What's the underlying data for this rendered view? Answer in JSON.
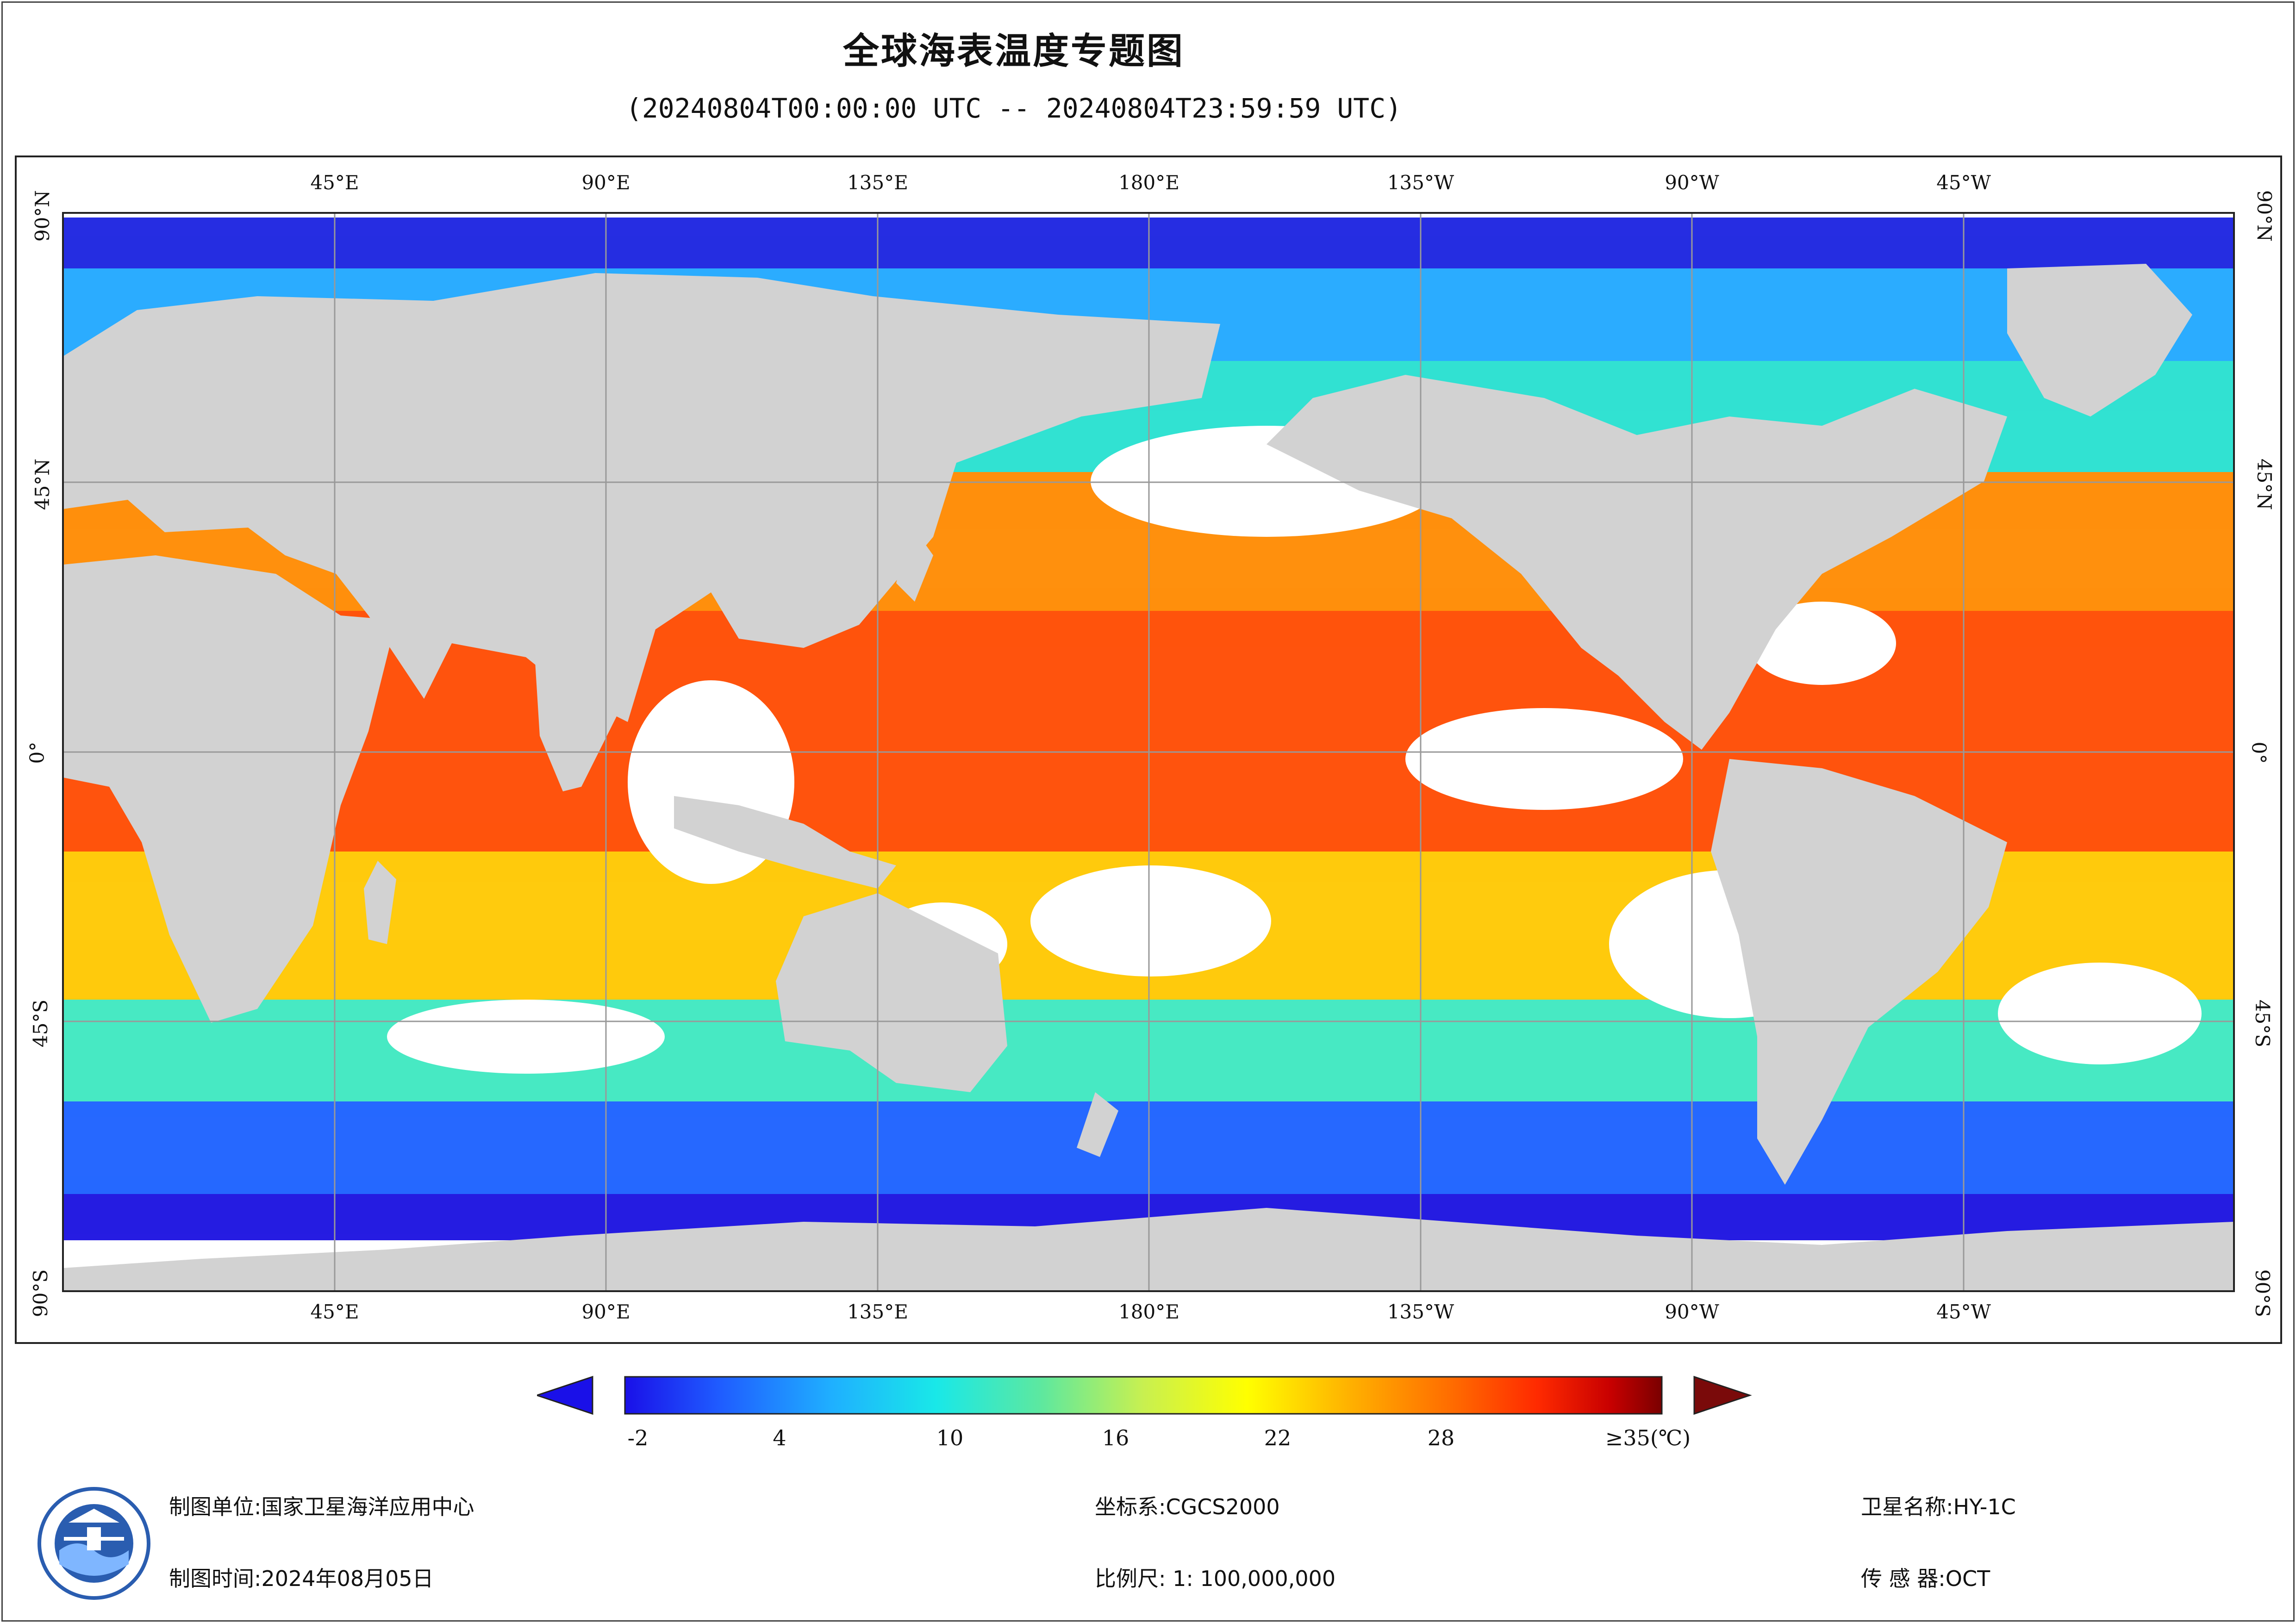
{
  "title": "全球海表温度专题图",
  "subtitle": "(20240804T00:00:00 UTC -- 20240804T23:59:59 UTC)",
  "map": {
    "projection": "Plate Carree, centered on 180°",
    "lon_top_labels": [
      "45°E",
      "90°E",
      "135°E",
      "180°E",
      "135°W",
      "90°W",
      "45°W"
    ],
    "lon_bottom_labels": [
      "45°E",
      "90°E",
      "135°E",
      "180°E",
      "135°W",
      "90°W",
      "45°W"
    ],
    "lat_labels": [
      "90°N",
      "45°N",
      "0°",
      "45°S",
      "90°S"
    ],
    "colors": {
      "land": "#d2d2d2",
      "no_data": "#ffffff",
      "grid": "#999999"
    }
  },
  "colorbar": {
    "labels": [
      "-2",
      "4",
      "10",
      "16",
      "22",
      "28",
      "≥35(℃)"
    ],
    "min": -2,
    "max": 35,
    "unit": "℃",
    "under_color": "#1a10e8",
    "over_color": "#7a0a0a",
    "gradient": [
      "#1a10e8",
      "#1f5bff",
      "#1fb0ff",
      "#19e8e8",
      "#5ce8a0",
      "#c8f050",
      "#ffff00",
      "#ffb000",
      "#ff6a00",
      "#ff2a00",
      "#c80000",
      "#7a0000"
    ]
  },
  "footer": {
    "unit_label": "制图单位:国家卫星海洋应用中心",
    "time_label": "制图时间:2024年08月05日",
    "crs_label": "坐标系:CGCS2000",
    "scale_label": "比例尺: 1: 100,000,000",
    "satellite_label": "卫星名称:HY-1C",
    "sensor_label": "传 感 器:OCT"
  }
}
